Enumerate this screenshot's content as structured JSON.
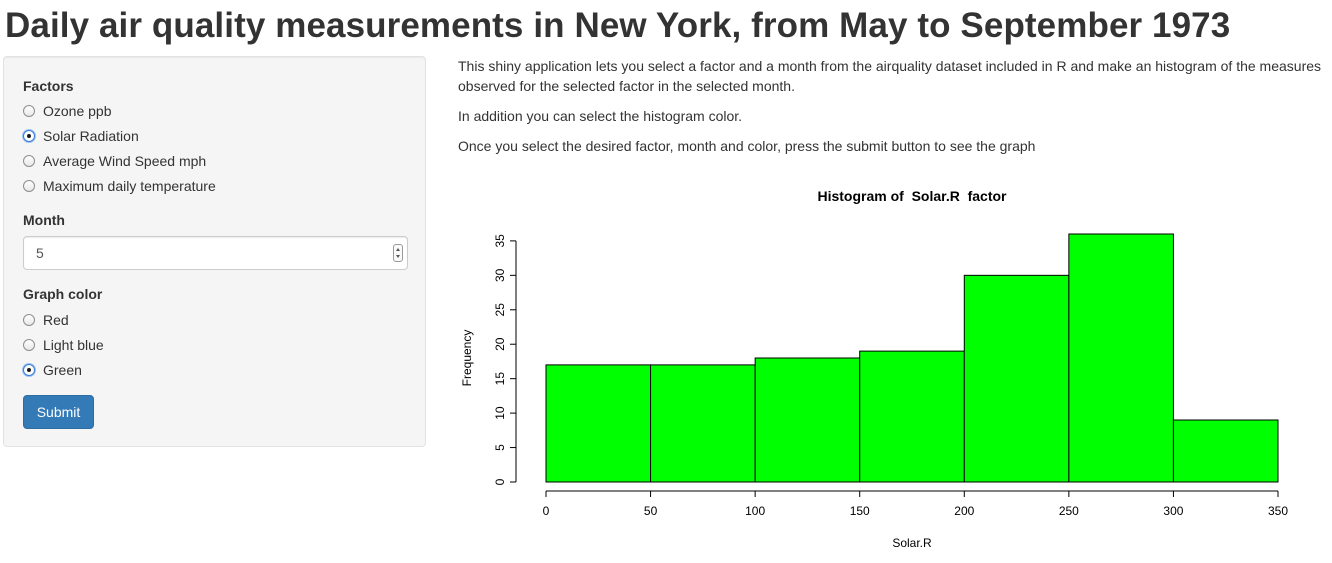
{
  "page": {
    "title": "Daily air quality measurements in New York, from May to September 1973"
  },
  "sidebar": {
    "factors": {
      "label": "Factors",
      "options": [
        {
          "label": "Ozone ppb",
          "checked": false
        },
        {
          "label": "Solar Radiation",
          "checked": true
        },
        {
          "label": "Average Wind Speed mph",
          "checked": false
        },
        {
          "label": "Maximum daily temperature",
          "checked": false
        }
      ]
    },
    "month": {
      "label": "Month",
      "value": "5"
    },
    "color": {
      "label": "Graph color",
      "options": [
        {
          "label": "Red",
          "checked": false
        },
        {
          "label": "Light blue",
          "checked": false
        },
        {
          "label": "Green",
          "checked": true
        }
      ]
    },
    "submit_label": "Submit",
    "accent_color": "#337ab7"
  },
  "main": {
    "paragraphs": [
      "This shiny application lets you select a factor and a month from the airquality dataset included in R and make an histogram of the measures observed for the selected factor in the selected month.",
      "In addition you can select the histogram color.",
      "Once you select the desired factor, month and color, press the submit button to see the graph"
    ]
  },
  "chart_data": {
    "type": "bar",
    "title": "Histogram of  Solar.R  factor",
    "xlabel": "Solar.R",
    "ylabel": "Frequency",
    "bins": [
      [
        0,
        50
      ],
      [
        50,
        100
      ],
      [
        100,
        150
      ],
      [
        150,
        200
      ],
      [
        200,
        250
      ],
      [
        250,
        300
      ],
      [
        300,
        350
      ]
    ],
    "values": [
      17,
      17,
      18,
      19,
      30,
      36,
      9
    ],
    "xticks": [
      0,
      50,
      100,
      150,
      200,
      250,
      300,
      350
    ],
    "yticks": [
      0,
      5,
      10,
      15,
      20,
      25,
      30,
      35
    ],
    "xlim": [
      0,
      350
    ],
    "ylim": [
      0,
      36
    ],
    "bar_color": "#00ff00",
    "grid": false,
    "legend": "none"
  }
}
